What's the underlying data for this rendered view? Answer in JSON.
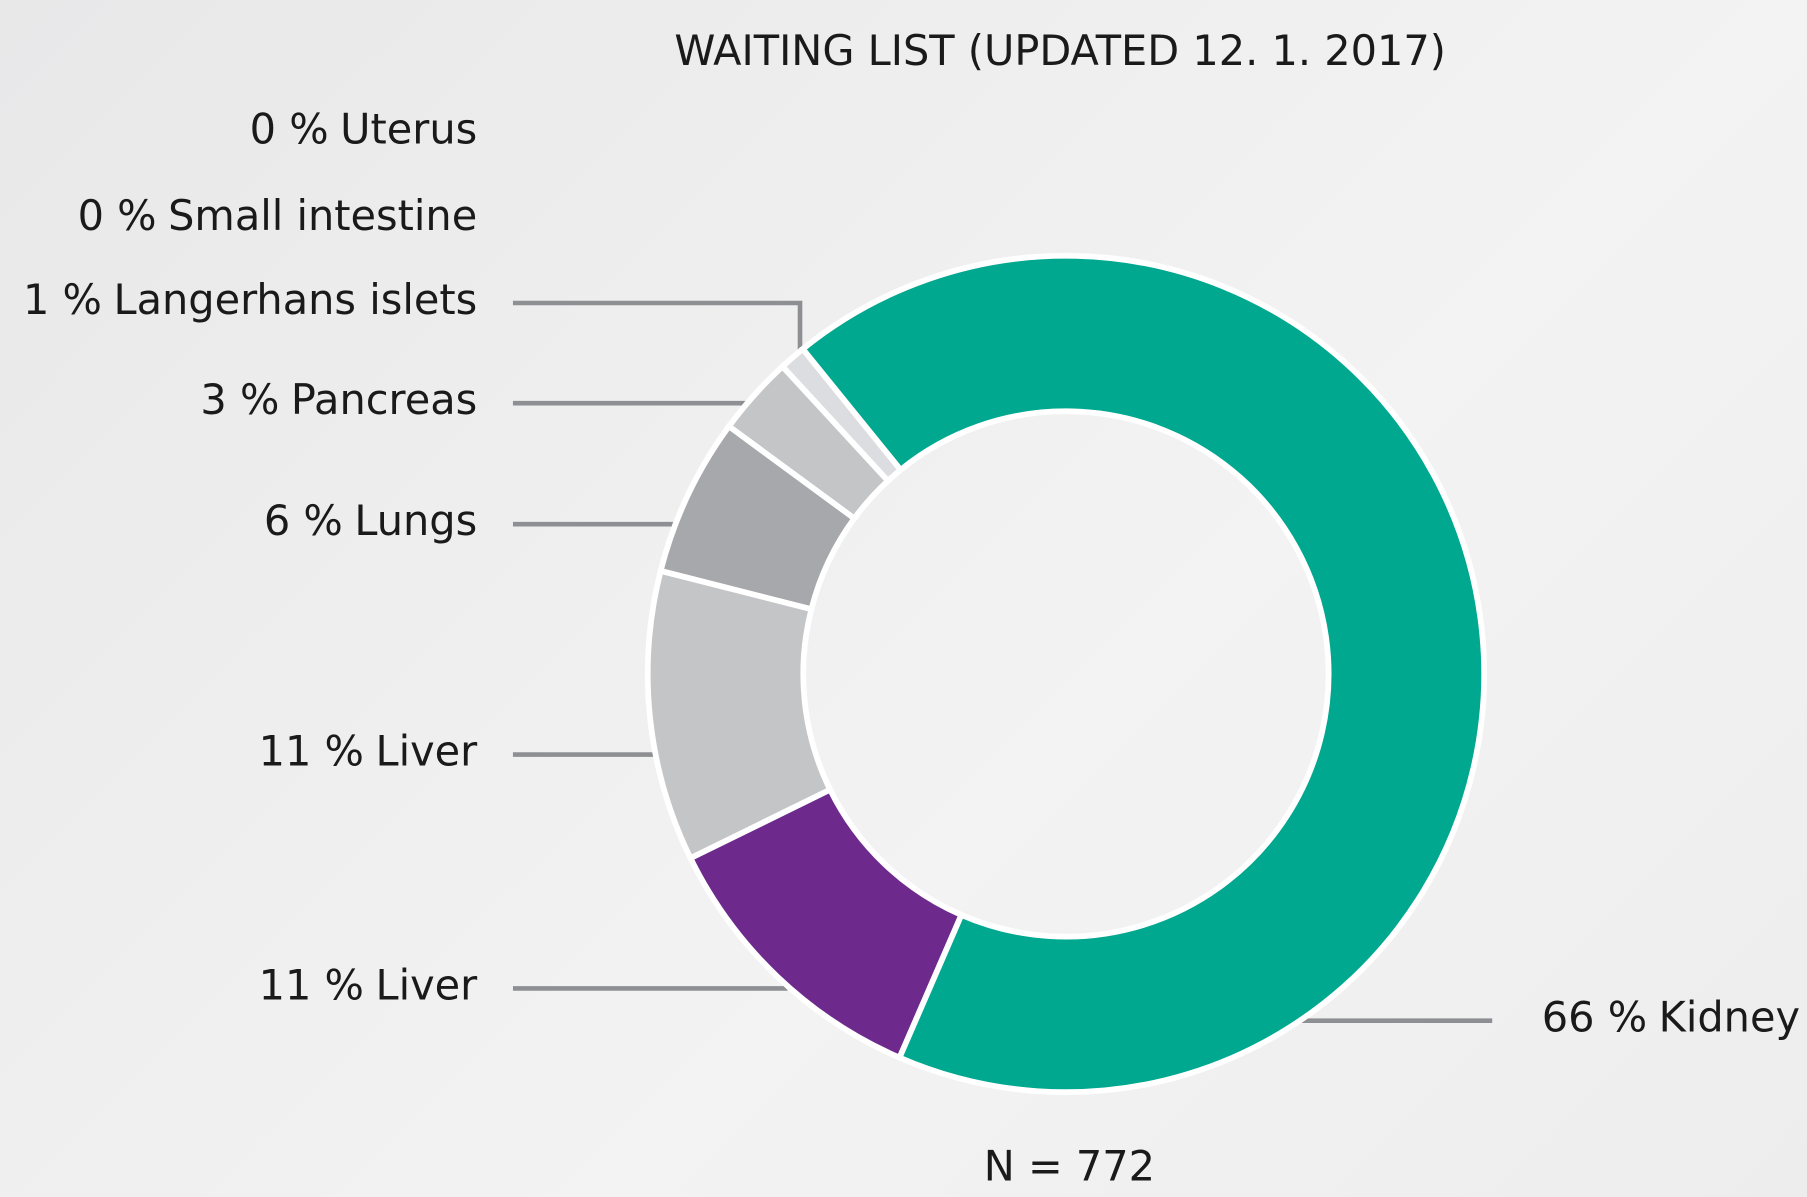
{
  "chart_data": {
    "type": "donut",
    "title": "WAITING LIST (UPDATED 12. 1. 2017)",
    "note": "N = 772",
    "categories": [
      "Uterus",
      "Small intestine",
      "Langerhans islets",
      "Pancreas",
      "Lungs",
      "Liver",
      "Liver",
      "Kidney"
    ],
    "values": [
      0,
      0,
      1,
      3,
      6,
      11,
      11,
      66
    ],
    "value_labels": [
      "0 %",
      "0 %",
      "1 %",
      "3 %",
      "6 %",
      "11 %",
      "11 %",
      "66 %"
    ],
    "colors": [
      "#e6e7e9",
      "#e6e7e9",
      "#dcdde0",
      "#c4c5c7",
      "#a7a8ab",
      "#c4c5c7",
      "#6d2a8c",
      "#00a88f"
    ]
  }
}
